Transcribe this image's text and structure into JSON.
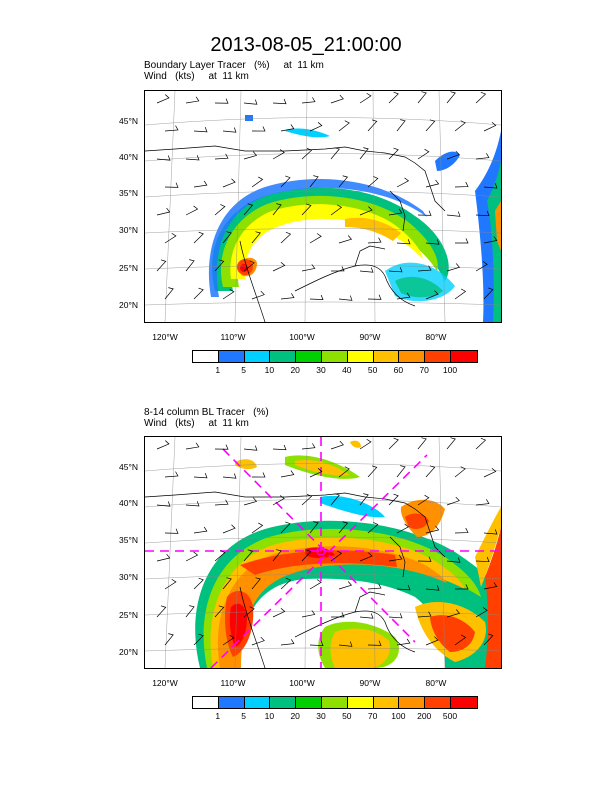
{
  "page": {
    "title": "2013-08-05_21:00:00"
  },
  "colors": {
    "scale": [
      "#ffffff",
      "#1f78ff",
      "#00d0ff",
      "#00c080",
      "#00d000",
      "#8ee000",
      "#ffff00",
      "#ffc000",
      "#ff9000",
      "#ff4000",
      "#ff0000"
    ],
    "overlay": "#ff00ff"
  },
  "panels": [
    {
      "label_line1": "Boundary Layer Tracer   (%)     at  11 km",
      "label_line2": "Wind   (kts)     at  11 km",
      "lat_labels": [
        "45°N",
        "40°N",
        "35°N",
        "30°N",
        "25°N",
        "20°N"
      ],
      "lon_labels": [
        "120°W",
        "110°W",
        "100°W",
        "90°W",
        "80°W"
      ],
      "colorbar_labels": [
        "1",
        "5",
        "10",
        "20",
        "30",
        "40",
        "50",
        "60",
        "70",
        "100"
      ]
    },
    {
      "label_line1": "8-14 column BL Tracer   (%)",
      "label_line2": "Wind   (kts)     at  11 km",
      "lat_labels": [
        "45°N",
        "40°N",
        "35°N",
        "30°N",
        "25°N",
        "20°N"
      ],
      "lon_labels": [
        "120°W",
        "110°W",
        "100°W",
        "90°W",
        "80°W"
      ],
      "colorbar_labels": [
        "1",
        "5",
        "10",
        "20",
        "30",
        "50",
        "70",
        "100",
        "200",
        "500"
      ]
    }
  ],
  "chart_data": [
    {
      "type": "heatmap",
      "title": "Boundary Layer Tracer (%) at 11 km",
      "variable": "Boundary Layer Tracer",
      "units": "%",
      "overlay": "Wind (kts) at 11 km",
      "color_levels": [
        1,
        5,
        10,
        20,
        30,
        40,
        50,
        60,
        70,
        100
      ],
      "lat_ticks": [
        45,
        40,
        35,
        30,
        25,
        20
      ],
      "lon_ticks": [
        -120,
        -110,
        -100,
        -90,
        -80
      ]
    },
    {
      "type": "heatmap",
      "title": "8-14 column BL Tracer (%)",
      "variable": "8-14 column BL Tracer",
      "units": "%",
      "overlay": "Wind (kts) at 11 km",
      "color_levels": [
        1,
        5,
        10,
        20,
        30,
        50,
        70,
        100,
        200,
        500
      ],
      "lat_ticks": [
        45,
        40,
        35,
        30,
        25,
        20
      ],
      "lon_ticks": [
        -120,
        -110,
        -100,
        -90,
        -80
      ]
    }
  ]
}
